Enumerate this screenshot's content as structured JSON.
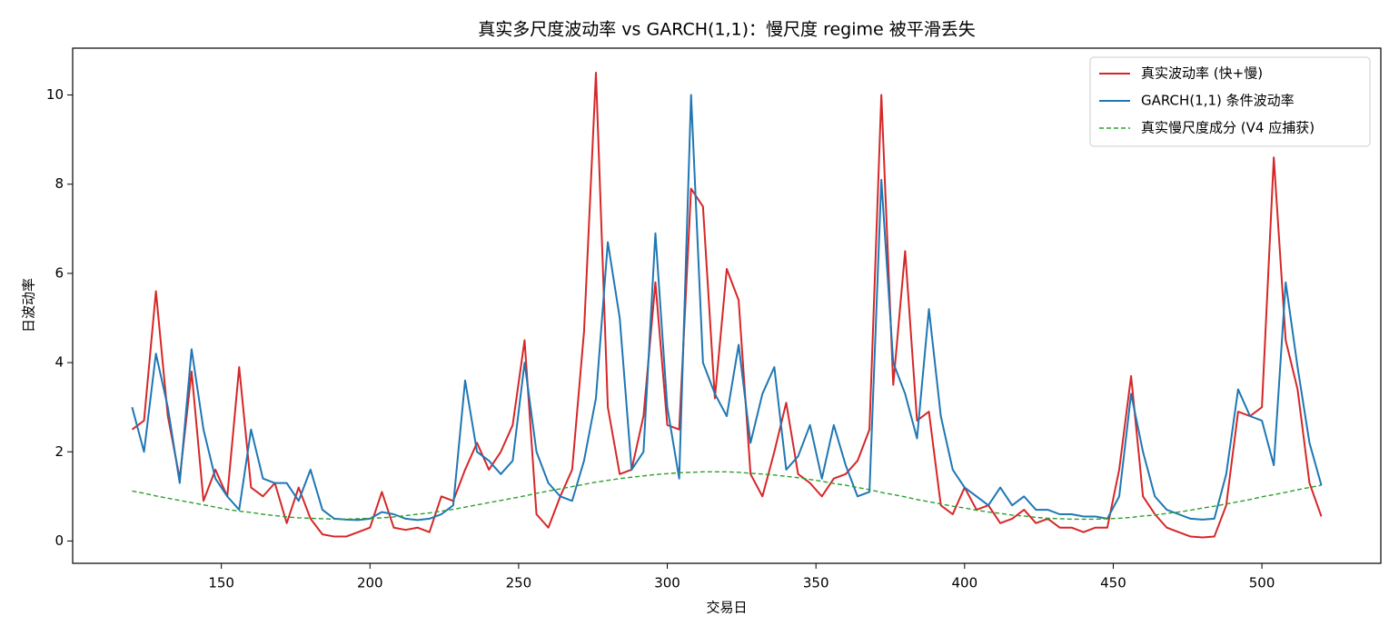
{
  "chart_data": {
    "type": "line",
    "title": "真实多尺度波动率 vs GARCH(1,1)：慢尺度 regime 被平滑丢失",
    "xlabel": "交易日",
    "ylabel": "日波动率",
    "x": [
      120,
      124,
      128,
      132,
      136,
      140,
      144,
      148,
      152,
      156,
      160,
      164,
      168,
      172,
      176,
      180,
      184,
      188,
      192,
      196,
      200,
      204,
      208,
      212,
      216,
      220,
      224,
      228,
      232,
      236,
      240,
      244,
      248,
      252,
      256,
      260,
      264,
      268,
      272,
      276,
      280,
      284,
      288,
      292,
      296,
      300,
      304,
      308,
      312,
      316,
      320,
      324,
      328,
      332,
      336,
      340,
      344,
      348,
      352,
      356,
      360,
      364,
      368,
      372,
      376,
      380,
      384,
      388,
      392,
      396,
      400,
      404,
      408,
      412,
      416,
      420,
      424,
      428,
      432,
      436,
      440,
      444,
      448,
      452,
      456,
      460,
      464,
      468,
      472,
      476,
      480,
      484,
      488,
      492,
      496,
      500,
      504,
      508,
      512,
      516,
      520
    ],
    "series": [
      {
        "name": "真实波动率 (快+慢)",
        "color": "#d62728",
        "linestyle": "solid",
        "values": [
          2.5,
          2.7,
          5.6,
          2.8,
          1.4,
          3.8,
          0.9,
          1.6,
          1.0,
          3.9,
          1.2,
          1.0,
          1.3,
          0.4,
          1.2,
          0.5,
          0.15,
          0.1,
          0.1,
          0.2,
          0.3,
          1.1,
          0.3,
          0.25,
          0.3,
          0.2,
          1.0,
          0.9,
          1.6,
          2.2,
          1.6,
          2.0,
          2.6,
          4.5,
          0.6,
          0.3,
          1.0,
          1.6,
          4.7,
          10.5,
          3.0,
          1.5,
          1.6,
          2.8,
          5.8,
          2.6,
          2.5,
          7.9,
          7.5,
          3.2,
          6.1,
          5.4,
          1.5,
          1.0,
          2.0,
          3.1,
          1.5,
          1.3,
          1.0,
          1.4,
          1.5,
          1.8,
          2.5,
          10.0,
          3.5,
          6.5,
          2.7,
          2.9,
          0.8,
          0.6,
          1.2,
          0.7,
          0.8,
          0.4,
          0.5,
          0.7,
          0.4,
          0.5,
          0.3,
          0.3,
          0.2,
          0.3,
          0.3,
          1.6,
          3.7,
          1.0,
          0.6,
          0.3,
          0.2,
          0.1,
          0.08,
          0.1,
          0.8,
          2.9,
          2.8,
          3.0,
          8.6,
          4.5,
          3.4,
          1.3,
          0.55
        ]
      },
      {
        "name": "GARCH(1,1) 条件波动率",
        "color": "#1f77b4",
        "linestyle": "solid",
        "values": [
          3.0,
          2.0,
          4.2,
          3.0,
          1.3,
          4.3,
          2.5,
          1.4,
          1.0,
          0.7,
          2.5,
          1.4,
          1.3,
          1.3,
          0.9,
          1.6,
          0.7,
          0.5,
          0.48,
          0.47,
          0.5,
          0.65,
          0.6,
          0.5,
          0.47,
          0.5,
          0.6,
          0.8,
          3.6,
          2.0,
          1.8,
          1.5,
          1.8,
          4.0,
          2.0,
          1.3,
          1.0,
          0.9,
          1.8,
          3.2,
          6.7,
          5.0,
          1.6,
          2.0,
          6.9,
          3.0,
          1.4,
          10.0,
          4.0,
          3.3,
          2.8,
          4.4,
          2.2,
          3.3,
          3.9,
          1.6,
          1.9,
          2.6,
          1.4,
          2.6,
          1.7,
          1.0,
          1.1,
          8.1,
          4.0,
          3.3,
          2.3,
          5.2,
          2.8,
          1.6,
          1.2,
          1.0,
          0.8,
          1.2,
          0.8,
          1.0,
          0.7,
          0.7,
          0.6,
          0.6,
          0.55,
          0.55,
          0.5,
          1.0,
          3.3,
          2.0,
          1.0,
          0.7,
          0.6,
          0.5,
          0.48,
          0.5,
          1.5,
          3.4,
          2.8,
          2.7,
          1.7,
          5.8,
          3.9,
          2.2,
          1.25
        ]
      },
      {
        "name": "真实慢尺度成分 (V4 应捕获)",
        "color": "#2ca02c",
        "linestyle": "dashed",
        "values": [
          1.12,
          1.07,
          1.01,
          0.96,
          0.91,
          0.86,
          0.81,
          0.76,
          0.71,
          0.67,
          0.64,
          0.6,
          0.57,
          0.54,
          0.52,
          0.51,
          0.5,
          0.49,
          0.49,
          0.5,
          0.51,
          0.52,
          0.54,
          0.57,
          0.6,
          0.63,
          0.67,
          0.71,
          0.76,
          0.81,
          0.86,
          0.91,
          0.96,
          1.01,
          1.07,
          1.12,
          1.17,
          1.22,
          1.27,
          1.32,
          1.36,
          1.4,
          1.43,
          1.46,
          1.49,
          1.51,
          1.53,
          1.54,
          1.55,
          1.55,
          1.55,
          1.54,
          1.52,
          1.5,
          1.48,
          1.45,
          1.42,
          1.38,
          1.34,
          1.29,
          1.25,
          1.2,
          1.15,
          1.09,
          1.04,
          0.99,
          0.93,
          0.88,
          0.83,
          0.78,
          0.74,
          0.69,
          0.65,
          0.62,
          0.58,
          0.56,
          0.53,
          0.51,
          0.5,
          0.49,
          0.49,
          0.49,
          0.5,
          0.51,
          0.53,
          0.56,
          0.58,
          0.62,
          0.65,
          0.69,
          0.74,
          0.78,
          0.83,
          0.88,
          0.93,
          0.99,
          1.04,
          1.09,
          1.15,
          1.2,
          1.25
        ]
      }
    ],
    "xlim": [
      100,
      540
    ],
    "ylim": [
      -0.5,
      11.05
    ],
    "xticks": [
      150,
      200,
      250,
      300,
      350,
      400,
      450,
      500
    ],
    "yticks": [
      0,
      2,
      4,
      6,
      8,
      10
    ],
    "grid": false,
    "legend": "upper right"
  }
}
